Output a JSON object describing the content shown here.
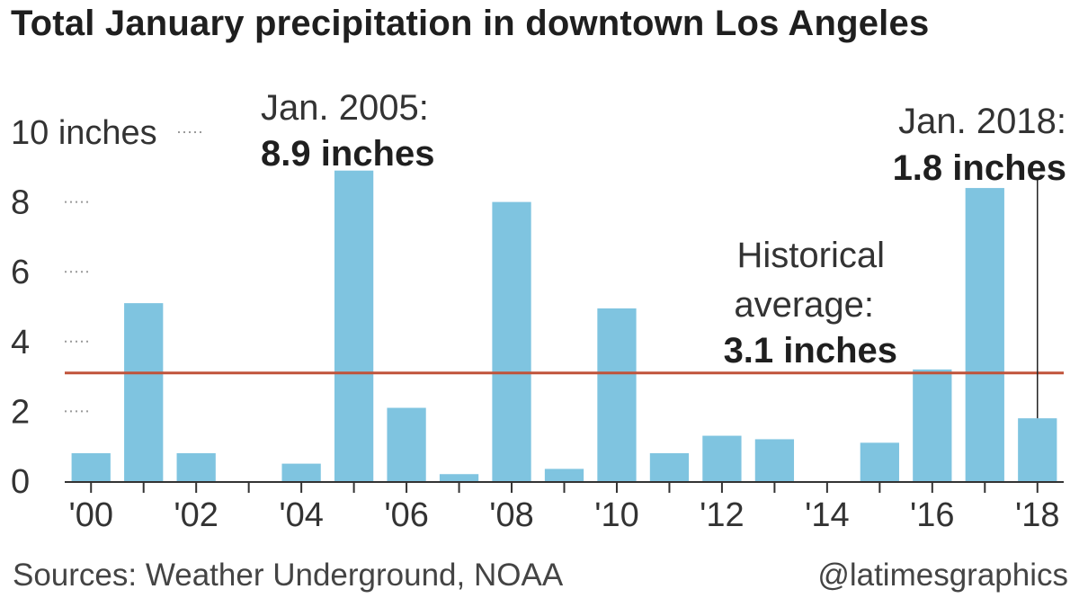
{
  "chart_data": {
    "type": "bar",
    "title": "Total January precipitation in downtown Los Angeles",
    "unit": "inches",
    "categories": [
      "2000",
      "2001",
      "2002",
      "2003",
      "2004",
      "2005",
      "2006",
      "2007",
      "2008",
      "2009",
      "2010",
      "2011",
      "2012",
      "2013",
      "2014",
      "2015",
      "2016",
      "2017",
      "2018"
    ],
    "values": [
      0.8,
      5.1,
      0.8,
      0.0,
      0.5,
      8.9,
      2.1,
      0.2,
      8.0,
      0.35,
      4.95,
      0.8,
      1.3,
      1.2,
      0.0,
      1.1,
      3.2,
      8.4,
      1.8
    ],
    "x_tick_labels": [
      "'00",
      "'02",
      "'04",
      "'06",
      "'08",
      "'10",
      "'12",
      "'14",
      "'16",
      "'18"
    ],
    "y_tick_labels": [
      "0",
      "2",
      "4",
      "6",
      "8",
      "10 inches"
    ],
    "y_ticks": [
      0,
      2,
      4,
      6,
      8,
      10
    ],
    "ylim": [
      0,
      10
    ],
    "bar_color": "#7fc4e0",
    "reference_line": {
      "value": 3.1,
      "color": "#c0533a"
    },
    "annotations": {
      "jan2005": {
        "line1": "Jan. 2005:",
        "line2": "8.9 inches"
      },
      "jan2018": {
        "line1": "Jan. 2018:",
        "line2": "1.8 inches"
      },
      "average": {
        "line1": "Historical",
        "line2": "average:",
        "line3": "3.1 inches"
      }
    }
  },
  "footer": {
    "source": "Sources: Weather Underground, NOAA",
    "credit": "@latimesgraphics"
  }
}
